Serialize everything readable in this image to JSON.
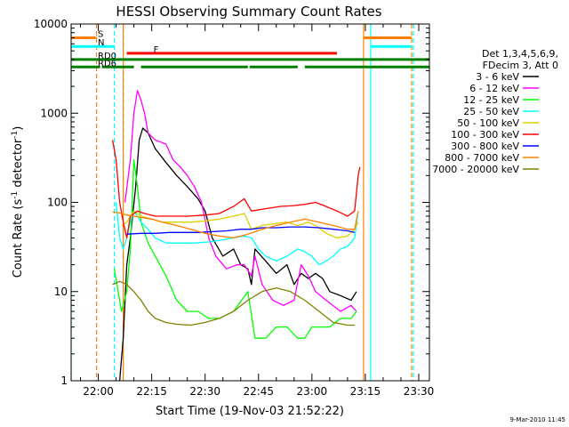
{
  "chart_data": {
    "type": "line",
    "title": "HESSI Observing Summary Count Rates",
    "xlabel": "Start Time (19-Nov-03 21:52:22)",
    "ylabel": "Count Rate (s⁻¹ detector⁻¹)",
    "ylabel_main": "Count Rate (s",
    "ylabel_sup1": "-1",
    "ylabel_mid": " detector",
    "ylabel_sup2": "-1",
    "ylabel_end": ")",
    "y_scale": "log",
    "ylim": [
      1,
      10000
    ],
    "xlim": [
      "21:52:22",
      "23:33:00"
    ],
    "y_ticks": [
      {
        "v": 1,
        "label": "1"
      },
      {
        "v": 10,
        "label": "10"
      },
      {
        "v": 100,
        "label": "100"
      },
      {
        "v": 1000,
        "label": "1000"
      },
      {
        "v": 10000,
        "label": "10000"
      }
    ],
    "x_ticks": [
      {
        "t": "22:00",
        "label": "22:00"
      },
      {
        "t": "22:15",
        "label": "22:15"
      },
      {
        "t": "22:30",
        "label": "22:30"
      },
      {
        "t": "22:45",
        "label": "22:45"
      },
      {
        "t": "23:00",
        "label": "23:00"
      },
      {
        "t": "23:15",
        "label": "23:15"
      },
      {
        "t": "23:30",
        "label": "23:30"
      }
    ],
    "legend_position": "right",
    "legend_header": [
      "Det 1,3,4,5,6,9,",
      "FDecim 3, Att 0"
    ],
    "series": [
      {
        "name": "3 - 6 keV",
        "color": "#000000",
        "points": [
          [
            "22:06:00",
            1
          ],
          [
            "22:07:00",
            3
          ],
          [
            "22:08:00",
            20
          ],
          [
            "22:09:00",
            40
          ],
          [
            "22:10:30",
            150
          ],
          [
            "22:11:30",
            500
          ],
          [
            "22:12:30",
            680
          ],
          [
            "22:14:00",
            600
          ],
          [
            "22:16:00",
            400
          ],
          [
            "22:19:00",
            280
          ],
          [
            "22:22:00",
            200
          ],
          [
            "22:25:00",
            150
          ],
          [
            "22:28:00",
            110
          ],
          [
            "22:30:00",
            80
          ],
          [
            "22:32:00",
            40
          ],
          [
            "22:35:00",
            25
          ],
          [
            "22:38:00",
            30
          ],
          [
            "22:40:00",
            20
          ],
          [
            "22:42:00",
            18
          ],
          [
            "22:43:00",
            12
          ],
          [
            "22:44:00",
            30
          ],
          [
            "22:47:00",
            22
          ],
          [
            "22:50:00",
            16
          ],
          [
            "22:53:00",
            20
          ],
          [
            "22:55:00",
            12
          ],
          [
            "22:57:00",
            16
          ],
          [
            "22:59:00",
            14
          ],
          [
            "23:01:00",
            16
          ],
          [
            "23:03:00",
            14
          ],
          [
            "23:05:00",
            10
          ],
          [
            "23:08:00",
            9
          ],
          [
            "23:11:00",
            8
          ],
          [
            "23:12:30",
            10
          ]
        ]
      },
      {
        "name": "6 - 12 keV",
        "color": "#ff00ff",
        "points": [
          [
            "22:07:30",
            100
          ],
          [
            "22:09:00",
            300
          ],
          [
            "22:10:00",
            1000
          ],
          [
            "22:11:00",
            1800
          ],
          [
            "22:12:00",
            1400
          ],
          [
            "22:13:00",
            1000
          ],
          [
            "22:14:00",
            600
          ],
          [
            "22:16:00",
            500
          ],
          [
            "22:19:00",
            450
          ],
          [
            "22:21:00",
            300
          ],
          [
            "22:23:00",
            250
          ],
          [
            "22:25:00",
            200
          ],
          [
            "22:27:00",
            150
          ],
          [
            "22:29:00",
            100
          ],
          [
            "22:31:00",
            40
          ],
          [
            "22:33:00",
            25
          ],
          [
            "22:36:00",
            18
          ],
          [
            "22:39:00",
            20
          ],
          [
            "22:41:00",
            20
          ],
          [
            "22:43:00",
            15
          ],
          [
            "22:44:00",
            25
          ],
          [
            "22:46:00",
            12
          ],
          [
            "22:49:00",
            8
          ],
          [
            "22:52:00",
            7
          ],
          [
            "22:55:00",
            8
          ],
          [
            "22:57:00",
            20
          ],
          [
            "22:59:00",
            15
          ],
          [
            "23:01:00",
            10
          ],
          [
            "23:04:00",
            8
          ],
          [
            "23:08:00",
            6
          ],
          [
            "23:11:00",
            7
          ],
          [
            "23:12:30",
            6
          ]
        ]
      },
      {
        "name": "12 - 25 keV",
        "color": "#00ff00",
        "points": [
          [
            "22:04:30",
            18
          ],
          [
            "22:06:30",
            6
          ],
          [
            "22:08:00",
            10
          ],
          [
            "22:09:00",
            30
          ],
          [
            "22:10:00",
            300
          ],
          [
            "22:11:00",
            150
          ],
          [
            "22:12:00",
            60
          ],
          [
            "22:14:00",
            35
          ],
          [
            "22:16:00",
            25
          ],
          [
            "22:19:00",
            15
          ],
          [
            "22:22:00",
            8
          ],
          [
            "22:25:00",
            6
          ],
          [
            "22:28:00",
            6
          ],
          [
            "22:31:00",
            5
          ],
          [
            "22:34:00",
            5
          ],
          [
            "22:38:00",
            6
          ],
          [
            "22:42:00",
            10
          ],
          [
            "22:44:00",
            3
          ],
          [
            "22:47:00",
            3
          ],
          [
            "22:50:00",
            4
          ],
          [
            "22:53:00",
            4
          ],
          [
            "22:56:00",
            3
          ],
          [
            "22:58:00",
            3
          ],
          [
            "23:00:00",
            4
          ],
          [
            "23:02:00",
            4
          ],
          [
            "23:05:00",
            4
          ],
          [
            "23:08:00",
            5
          ],
          [
            "23:11:00",
            5
          ],
          [
            "23:12:30",
            6
          ]
        ]
      },
      {
        "name": "25 - 50 keV",
        "color": "#00ffff",
        "points": [
          [
            "22:05:00",
            100
          ],
          [
            "22:06:00",
            40
          ],
          [
            "22:07:00",
            30
          ],
          [
            "22:08:00",
            40
          ],
          [
            "22:09:00",
            60
          ],
          [
            "22:10:00",
            80
          ],
          [
            "22:12:00",
            60
          ],
          [
            "22:14:00",
            50
          ],
          [
            "22:16:00",
            40
          ],
          [
            "22:19:00",
            35
          ],
          [
            "22:23:00",
            35
          ],
          [
            "22:27:00",
            35
          ],
          [
            "22:31:00",
            36
          ],
          [
            "22:35:00",
            38
          ],
          [
            "22:38:00",
            40
          ],
          [
            "22:41:00",
            42
          ],
          [
            "22:43:00",
            40
          ],
          [
            "22:45:00",
            30
          ],
          [
            "22:47:00",
            25
          ],
          [
            "22:50:00",
            22
          ],
          [
            "22:53:00",
            25
          ],
          [
            "22:56:00",
            30
          ],
          [
            "22:58:00",
            28
          ],
          [
            "23:00:00",
            25
          ],
          [
            "23:02:00",
            20
          ],
          [
            "23:04:00",
            22
          ],
          [
            "23:06:00",
            25
          ],
          [
            "23:08:00",
            30
          ],
          [
            "23:10:00",
            32
          ],
          [
            "23:12:00",
            40
          ],
          [
            "23:13:00",
            80
          ]
        ]
      },
      {
        "name": "50 - 100 keV",
        "color": "#e0d000",
        "points": [
          [
            "22:06:30",
            55
          ],
          [
            "22:08:00",
            60
          ],
          [
            "22:10:00",
            80
          ],
          [
            "22:12:00",
            70
          ],
          [
            "22:15:00",
            65
          ],
          [
            "22:18:00",
            60
          ],
          [
            "22:22:00",
            60
          ],
          [
            "22:26:00",
            60
          ],
          [
            "22:30:00",
            62
          ],
          [
            "22:34:00",
            65
          ],
          [
            "22:38:00",
            70
          ],
          [
            "22:41:00",
            75
          ],
          [
            "22:43:00",
            50
          ],
          [
            "22:46:00",
            55
          ],
          [
            "22:50:00",
            58
          ],
          [
            "22:53:00",
            60
          ],
          [
            "22:56:00",
            55
          ],
          [
            "22:59:00",
            60
          ],
          [
            "23:01:00",
            55
          ],
          [
            "23:04:00",
            45
          ],
          [
            "23:07:00",
            40
          ],
          [
            "23:10:00",
            42
          ],
          [
            "23:12:00",
            50
          ],
          [
            "23:13:00",
            60
          ]
        ]
      },
      {
        "name": "100 - 300 keV",
        "color": "#ff0000",
        "points": [
          [
            "22:04:00",
            500
          ],
          [
            "22:05:00",
            300
          ],
          [
            "22:06:00",
            100
          ],
          [
            "22:07:00",
            60
          ],
          [
            "22:08:00",
            40
          ],
          [
            "22:09:00",
            70
          ],
          [
            "22:11:00",
            80
          ],
          [
            "22:13:00",
            75
          ],
          [
            "22:16:00",
            70
          ],
          [
            "22:20:00",
            70
          ],
          [
            "22:25:00",
            70
          ],
          [
            "22:30:00",
            72
          ],
          [
            "22:34:00",
            75
          ],
          [
            "22:38:00",
            90
          ],
          [
            "22:41:00",
            110
          ],
          [
            "22:43:00",
            80
          ],
          [
            "22:47:00",
            85
          ],
          [
            "22:51:00",
            90
          ],
          [
            "22:55:00",
            92
          ],
          [
            "22:58:00",
            95
          ],
          [
            "23:01:00",
            100
          ],
          [
            "23:04:00",
            90
          ],
          [
            "23:07:00",
            80
          ],
          [
            "23:10:00",
            70
          ],
          [
            "23:12:00",
            80
          ],
          [
            "23:13:00",
            200
          ],
          [
            "23:13:30",
            250
          ]
        ]
      },
      {
        "name": "300 - 800 keV",
        "color": "#0000ff",
        "points": [
          [
            "22:08:00",
            44
          ],
          [
            "22:12:00",
            45
          ],
          [
            "22:16:00",
            45
          ],
          [
            "22:20:00",
            46
          ],
          [
            "22:24:00",
            46
          ],
          [
            "22:28:00",
            46
          ],
          [
            "22:32:00",
            47
          ],
          [
            "22:36:00",
            48
          ],
          [
            "22:40:00",
            50
          ],
          [
            "22:43:00",
            50
          ],
          [
            "22:46:00",
            52
          ],
          [
            "22:50:00",
            52
          ],
          [
            "22:54:00",
            53
          ],
          [
            "22:58:00",
            53
          ],
          [
            "23:02:00",
            52
          ],
          [
            "23:06:00",
            50
          ],
          [
            "23:10:00",
            48
          ],
          [
            "23:12:00",
            46
          ]
        ]
      },
      {
        "name": "800 - 7000 keV",
        "color": "#ff8000",
        "points": [
          [
            "22:04:00",
            78
          ],
          [
            "22:06:00",
            76
          ],
          [
            "22:08:00",
            72
          ],
          [
            "22:10:00",
            70
          ],
          [
            "22:12:00",
            68
          ],
          [
            "22:15:00",
            65
          ],
          [
            "22:18:00",
            60
          ],
          [
            "22:22:00",
            55
          ],
          [
            "22:26:00",
            50
          ],
          [
            "22:30:00",
            45
          ],
          [
            "22:34:00",
            42
          ],
          [
            "22:38:00",
            40
          ],
          [
            "22:42:00",
            44
          ],
          [
            "22:46:00",
            50
          ],
          [
            "22:50:00",
            55
          ],
          [
            "22:54:00",
            60
          ],
          [
            "22:58:00",
            65
          ],
          [
            "23:02:00",
            60
          ],
          [
            "23:06:00",
            55
          ],
          [
            "23:10:00",
            50
          ],
          [
            "23:12:00",
            50
          ],
          [
            "23:13:00",
            80
          ]
        ]
      },
      {
        "name": "7000 - 20000 keV",
        "color": "#808000",
        "points": [
          [
            "22:04:00",
            12
          ],
          [
            "22:06:00",
            13
          ],
          [
            "22:08:00",
            12
          ],
          [
            "22:10:00",
            10
          ],
          [
            "22:12:00",
            8
          ],
          [
            "22:14:00",
            6
          ],
          [
            "22:16:00",
            5
          ],
          [
            "22:19:00",
            4.5
          ],
          [
            "22:22:00",
            4.3
          ],
          [
            "22:26:00",
            4.2
          ],
          [
            "22:30:00",
            4.5
          ],
          [
            "22:34:00",
            5
          ],
          [
            "22:38:00",
            6
          ],
          [
            "22:42:00",
            8
          ],
          [
            "22:46:00",
            10
          ],
          [
            "22:50:00",
            11
          ],
          [
            "22:54:00",
            10
          ],
          [
            "22:58:00",
            8
          ],
          [
            "23:02:00",
            6
          ],
          [
            "23:06:00",
            4.5
          ],
          [
            "23:10:00",
            4.2
          ],
          [
            "23:12:00",
            4.2
          ]
        ]
      }
    ],
    "flag_bars": [
      {
        "label": "S",
        "color": "#ff8000",
        "y": 7000,
        "segments": [
          [
            "21:52:22",
            "21:59:30"
          ],
          [
            "23:14:30",
            "23:28:00"
          ]
        ]
      },
      {
        "label": "N",
        "color": "#00ffff",
        "y": 5600,
        "segments": [
          [
            "21:52:22",
            "22:04:30"
          ],
          [
            "23:16:30",
            "23:28:00"
          ]
        ]
      },
      {
        "label": "F",
        "color": "#ff0000",
        "y": 4700,
        "segments": [
          [
            "22:08:00",
            "23:07:00"
          ]
        ]
      },
      {
        "label": "RD0",
        "color": "#008000",
        "y": 4000,
        "segments": [
          [
            "21:52:22",
            "23:33:00"
          ]
        ]
      },
      {
        "label": "RD6",
        "color": "#008000",
        "y": 3300,
        "segments": [
          [
            "21:52:22",
            "22:00:30"
          ],
          [
            "22:01:00",
            "22:10:00"
          ],
          [
            "22:12:00",
            "22:42:00"
          ],
          [
            "22:42:30",
            "22:56:00"
          ],
          [
            "22:58:00",
            "23:33:00"
          ]
        ]
      }
    ],
    "vertical_markers": [
      {
        "t": "21:52:22",
        "color": "#00ffff",
        "style": "solid"
      },
      {
        "t": "21:59:30",
        "color": "#ff8000",
        "style": "dashed"
      },
      {
        "t": "22:04:30",
        "color": "#00ffff",
        "style": "dashed"
      },
      {
        "t": "22:07:00",
        "color": "#ff8000",
        "style": "solid"
      },
      {
        "t": "23:14:30",
        "color": "#ff8000",
        "style": "solid"
      },
      {
        "t": "23:16:30",
        "color": "#00ffff",
        "style": "solid"
      },
      {
        "t": "23:28:00",
        "color": "#ff8000",
        "style": "dashed"
      },
      {
        "t": "23:28:30",
        "color": "#00ffff",
        "style": "dashed"
      }
    ]
  },
  "footer_date": "9-Mar-2010 11:45"
}
